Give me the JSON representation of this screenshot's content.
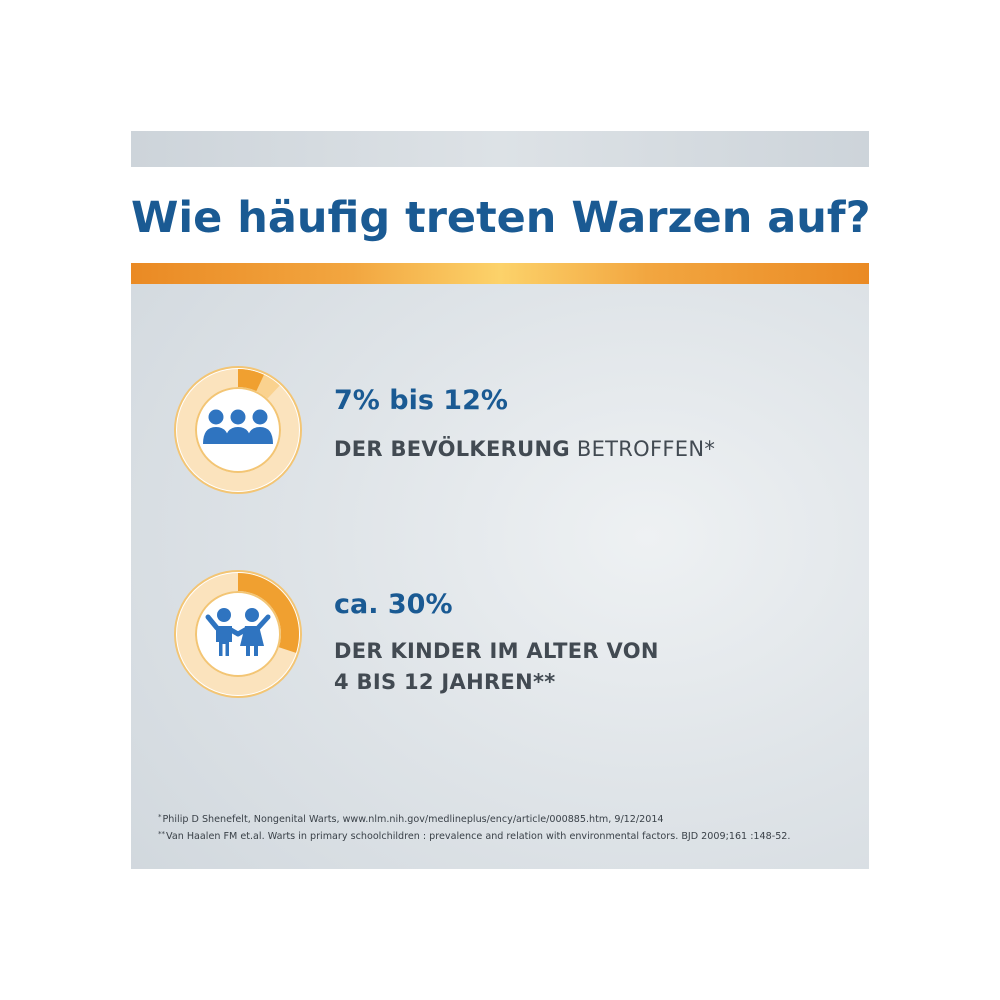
{
  "title": "Wie häufig treten Warzen auf?",
  "colors": {
    "title_blue": "#1a5a93",
    "icon_blue": "#2f74c0",
    "accent_orange": "#f0a030",
    "ring_light": "#fbe3bd",
    "text_gray": "#424a52"
  },
  "stats": [
    {
      "icon": "people-group-icon",
      "share_low": 0.07,
      "share_high": 0.12,
      "value": "7% bis 12%",
      "desc_bold": "DER BEVÖLKERUNG",
      "desc_rest": " BETROFFEN*"
    },
    {
      "icon": "children-icon",
      "share": 0.3,
      "value": "ca. 30%",
      "desc_line1": "DER KINDER IM ALTER VON",
      "desc_line2": "4 BIS 12 JAHREN**"
    }
  ],
  "footnotes": [
    {
      "mark": "*",
      "text": "Philip D Shenefelt, Nongenital Warts, www.nlm.nih.gov/medlineplus/ency/article/000885.htm, 9/12/2014"
    },
    {
      "mark": "**",
      "text": "Van Haalen FM et.al. Warts in primary schoolchildren : prevalence and relation with environmental factors. BJD 2009;161 :148-52."
    }
  ]
}
